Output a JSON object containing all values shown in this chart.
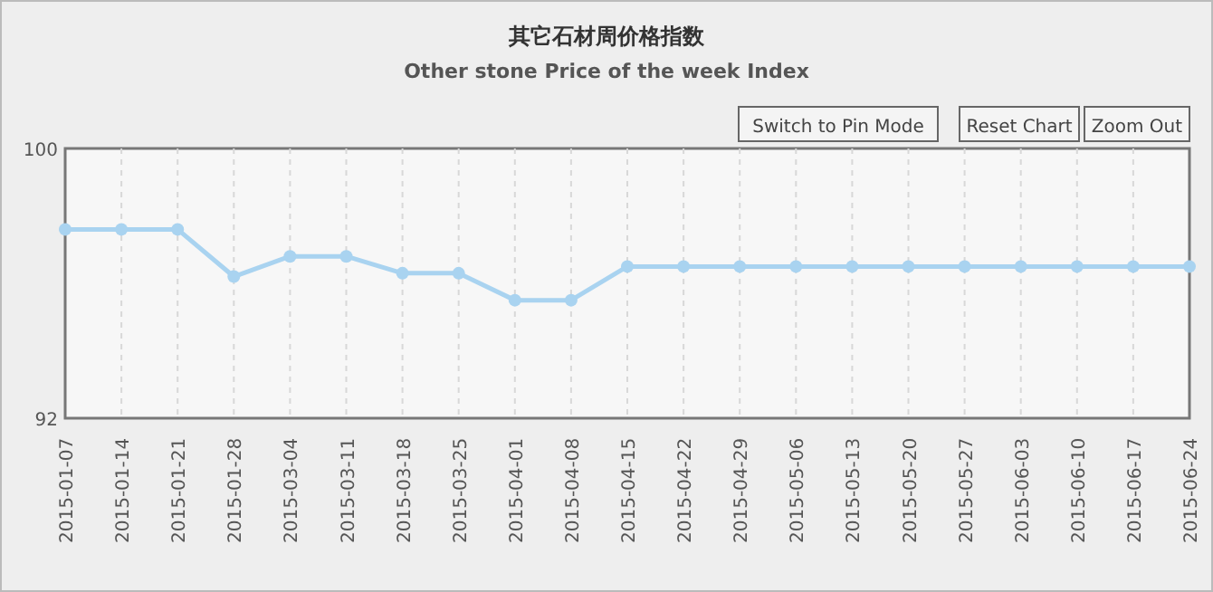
{
  "chart_data": {
    "type": "line",
    "title": "其它石材周价格指数",
    "subtitle": "Other stone Price of the week Index",
    "categories": [
      "2015-01-07",
      "2015-01-14",
      "2015-01-21",
      "2015-01-28",
      "2015-03-04",
      "2015-03-11",
      "2015-03-18",
      "2015-03-25",
      "2015-04-01",
      "2015-04-08",
      "2015-04-15",
      "2015-04-22",
      "2015-04-29",
      "2015-05-06",
      "2015-05-13",
      "2015-05-20",
      "2015-05-27",
      "2015-06-03",
      "2015-06-10",
      "2015-06-17",
      "2015-06-24"
    ],
    "series": [
      {
        "color": "#a9d3f0",
        "values": [
          97.6,
          97.6,
          97.6,
          96.2,
          96.8,
          96.8,
          96.3,
          96.3,
          95.5,
          95.5,
          96.5,
          96.5,
          96.5,
          96.5,
          96.5,
          96.5,
          96.5,
          96.5,
          96.5,
          96.5,
          96.5
        ]
      }
    ],
    "ylim": [
      92,
      100
    ],
    "yticks": [
      92,
      100
    ],
    "grid": "x",
    "marker": "circle",
    "line_style": "solid",
    "annotations": [
      "Switch to Pin Mode",
      "Reset Chart",
      "Zoom Out"
    ]
  }
}
